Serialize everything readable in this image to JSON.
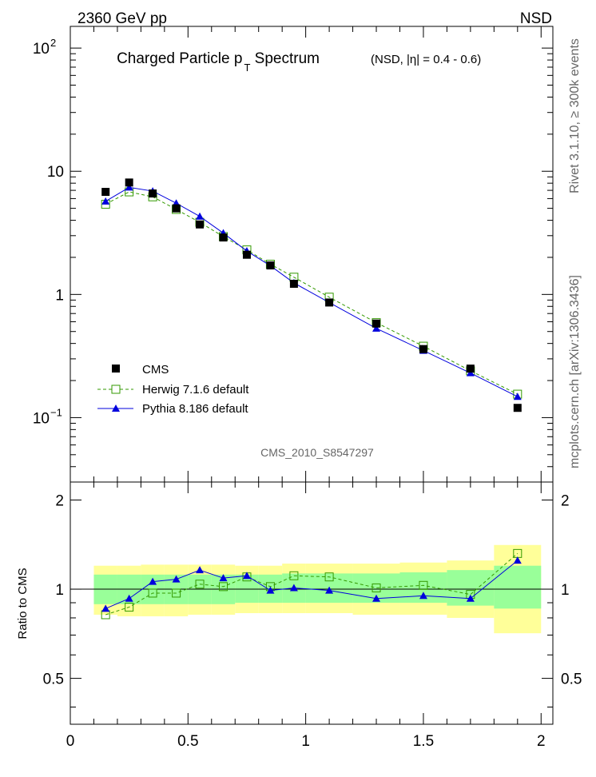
{
  "header": {
    "energy_label": "2360 GeV pp",
    "process_label": "NSD",
    "side_rivet": "Rivet 3.1.10, ≥ 300k events",
    "side_source": "mcplots.cern.ch [arXiv:1306.3436]"
  },
  "chart_data": [
    {
      "type": "line",
      "panel": "main",
      "title_main": "Charged Particle p",
      "title_sub": "T",
      "title_end": " Spectrum",
      "title_note": "(NSD, |η| = 0.4 - 0.6)",
      "analysis_tag": "CMS_2010_S8547297",
      "yscale": "log",
      "xlim": [
        0,
        2.05
      ],
      "ylim": [
        0.03,
        150
      ],
      "ytick_labels": [
        {
          "value": 0.1,
          "base": "10",
          "exp": "−1"
        },
        {
          "value": 1,
          "base": "1",
          "exp": ""
        },
        {
          "value": 10,
          "base": "10",
          "exp": ""
        },
        {
          "value": 100,
          "base": "10",
          "exp": "2"
        }
      ],
      "x": [
        0.15,
        0.25,
        0.35,
        0.45,
        0.55,
        0.65,
        0.75,
        0.85,
        0.95,
        1.1,
        1.3,
        1.5,
        1.7,
        1.9
      ],
      "series": [
        {
          "name": "CMS",
          "marker": "square-filled",
          "color": "#000000",
          "values": [
            6.8,
            8.1,
            6.6,
            5.0,
            3.7,
            2.9,
            2.1,
            1.72,
            1.22,
            0.86,
            0.58,
            0.36,
            0.25,
            0.12
          ]
        },
        {
          "name": "Herwig 7.1.6 default",
          "marker": "square-open",
          "color": "#339900",
          "line": "dashed",
          "values": [
            5.4,
            6.8,
            6.2,
            4.9,
            3.85,
            2.95,
            2.3,
            1.76,
            1.38,
            0.95,
            0.59,
            0.38,
            0.24,
            0.155
          ]
        },
        {
          "name": "Pythia 8.186 default",
          "marker": "triangle-filled",
          "color": "#0000dd",
          "line": "solid",
          "values": [
            5.7,
            7.4,
            6.9,
            5.5,
            4.3,
            3.15,
            2.25,
            1.71,
            1.24,
            0.86,
            0.53,
            0.35,
            0.23,
            0.148
          ]
        }
      ]
    },
    {
      "type": "line",
      "panel": "ratio",
      "ylabel": "Ratio to CMS",
      "xlim": [
        0,
        2.05
      ],
      "ylim": [
        0.35,
        2.3
      ],
      "xtick_labels": [
        "0",
        "0.5",
        "1",
        "1.5",
        "2"
      ],
      "xtick_values": [
        0,
        0.5,
        1,
        1.5,
        2
      ],
      "ytick_labels": [
        "0.5",
        "1",
        "2"
      ],
      "ytick_values": [
        0.5,
        1,
        2
      ],
      "x": [
        0.15,
        0.25,
        0.35,
        0.45,
        0.55,
        0.65,
        0.75,
        0.85,
        0.95,
        1.1,
        1.3,
        1.5,
        1.7,
        1.9
      ],
      "bands": [
        {
          "name": "total-uncertainty",
          "color": "#ffff99",
          "edges": [
            0.1,
            0.2,
            0.3,
            0.4,
            0.5,
            0.6,
            0.7,
            0.8,
            0.9,
            1.0,
            1.2,
            1.4,
            1.6,
            1.8,
            2.0
          ],
          "lo": [
            0.82,
            0.81,
            0.81,
            0.81,
            0.82,
            0.82,
            0.83,
            0.83,
            0.83,
            0.83,
            0.82,
            0.82,
            0.8,
            0.71
          ],
          "hi": [
            1.2,
            1.2,
            1.21,
            1.21,
            1.21,
            1.21,
            1.2,
            1.2,
            1.22,
            1.22,
            1.22,
            1.23,
            1.25,
            1.41
          ]
        },
        {
          "name": "stat-uncertainty",
          "color": "#99ff99",
          "edges": [
            0.1,
            0.2,
            0.3,
            0.4,
            0.5,
            0.6,
            0.7,
            0.8,
            0.9,
            1.0,
            1.2,
            1.4,
            1.6,
            1.8,
            2.0
          ],
          "lo": [
            0.89,
            0.89,
            0.89,
            0.89,
            0.89,
            0.89,
            0.9,
            0.9,
            0.9,
            0.9,
            0.9,
            0.9,
            0.88,
            0.86
          ],
          "hi": [
            1.12,
            1.12,
            1.12,
            1.12,
            1.12,
            1.12,
            1.12,
            1.12,
            1.13,
            1.13,
            1.13,
            1.14,
            1.16,
            1.2
          ]
        }
      ],
      "series": [
        {
          "name": "Herwig 7.1.6 default",
          "marker": "square-open",
          "color": "#339900",
          "line": "dashed",
          "values": [
            0.82,
            0.87,
            0.97,
            0.97,
            1.04,
            1.02,
            1.1,
            1.02,
            1.11,
            1.1,
            1.01,
            1.03,
            0.96,
            1.32
          ]
        },
        {
          "name": "Pythia 8.186 default",
          "marker": "triangle-filled",
          "color": "#0000dd",
          "line": "solid",
          "values": [
            0.86,
            0.93,
            1.06,
            1.08,
            1.16,
            1.09,
            1.11,
            0.99,
            1.01,
            0.99,
            0.93,
            0.95,
            0.93,
            1.25
          ]
        }
      ]
    }
  ]
}
